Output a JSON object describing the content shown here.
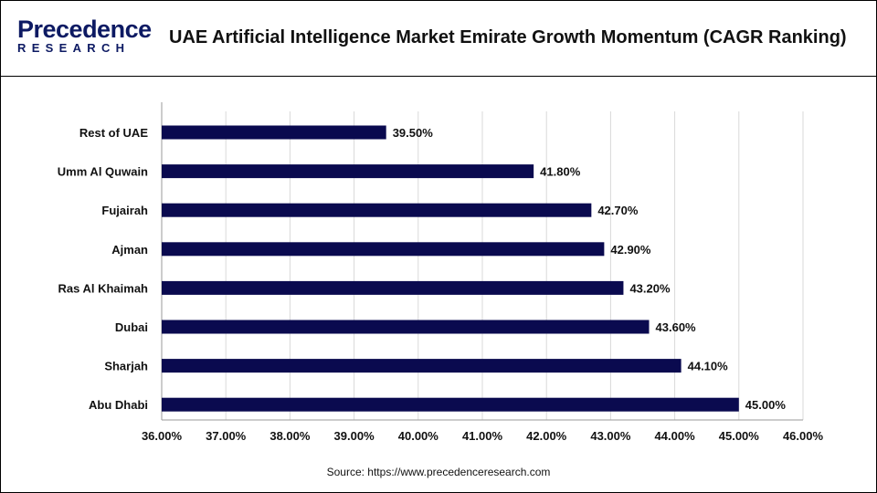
{
  "header": {
    "logo_main": "Precedence",
    "logo_sub": "RESEARCH",
    "title": "UAE Artificial Intelligence Market Emirate Growth Momentum (CAGR Ranking)"
  },
  "colors": {
    "bar": "#0a0a4f",
    "grid": "#d9d9d9",
    "text": "#111111"
  },
  "chart_data": {
    "type": "bar",
    "orientation": "horizontal",
    "categories": [
      "Rest of UAE",
      "Umm Al Quwain",
      "Fujairah",
      "Ajman",
      "Ras Al Khaimah",
      "Dubai",
      "Sharjah",
      "Abu Dhabi"
    ],
    "values": [
      39.5,
      41.8,
      42.7,
      42.9,
      43.2,
      43.6,
      44.1,
      45.0
    ],
    "data_labels": [
      "39.50%",
      "41.80%",
      "42.70%",
      "42.90%",
      "43.20%",
      "43.60%",
      "44.10%",
      "45.00%"
    ],
    "xlim": [
      36,
      46
    ],
    "xticks": [
      36,
      37,
      38,
      39,
      40,
      41,
      42,
      43,
      44,
      45,
      46
    ],
    "xtick_labels": [
      "36.00%",
      "37.00%",
      "38.00%",
      "39.00%",
      "40.00%",
      "41.00%",
      "42.00%",
      "43.00%",
      "44.00%",
      "45.00%",
      "46.00%"
    ],
    "grid": true,
    "legend": "none",
    "xlabel": "",
    "ylabel": ""
  },
  "footer": {
    "source": "Source: https://www.precedenceresearch.com"
  }
}
